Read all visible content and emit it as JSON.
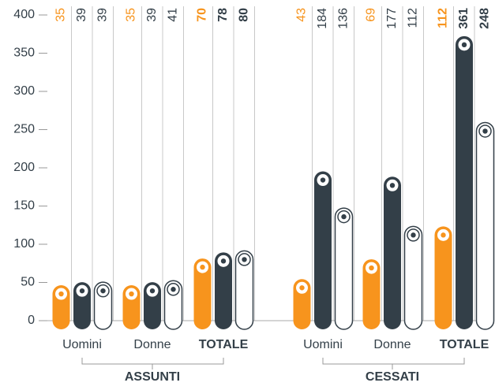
{
  "chart_data": {
    "type": "bar",
    "categories": [
      "Uomini",
      "Donne",
      "TOTALE",
      "Uomini",
      "Donne",
      "TOTALE"
    ],
    "groups": [
      "ASSUNTI",
      "CESSATI"
    ],
    "series": [
      {
        "color": "#f7941d",
        "values": [
          35,
          35,
          70,
          43,
          69,
          112
        ]
      },
      {
        "color": "#333f48",
        "values": [
          39,
          39,
          78,
          184,
          177,
          361
        ]
      },
      {
        "color": "#ffffff",
        "values": [
          39,
          41,
          80,
          136,
          112,
          248
        ]
      }
    ],
    "ylim": [
      0,
      400
    ],
    "yticks": [
      0,
      50,
      100,
      150,
      200,
      250,
      300,
      350,
      400
    ]
  }
}
